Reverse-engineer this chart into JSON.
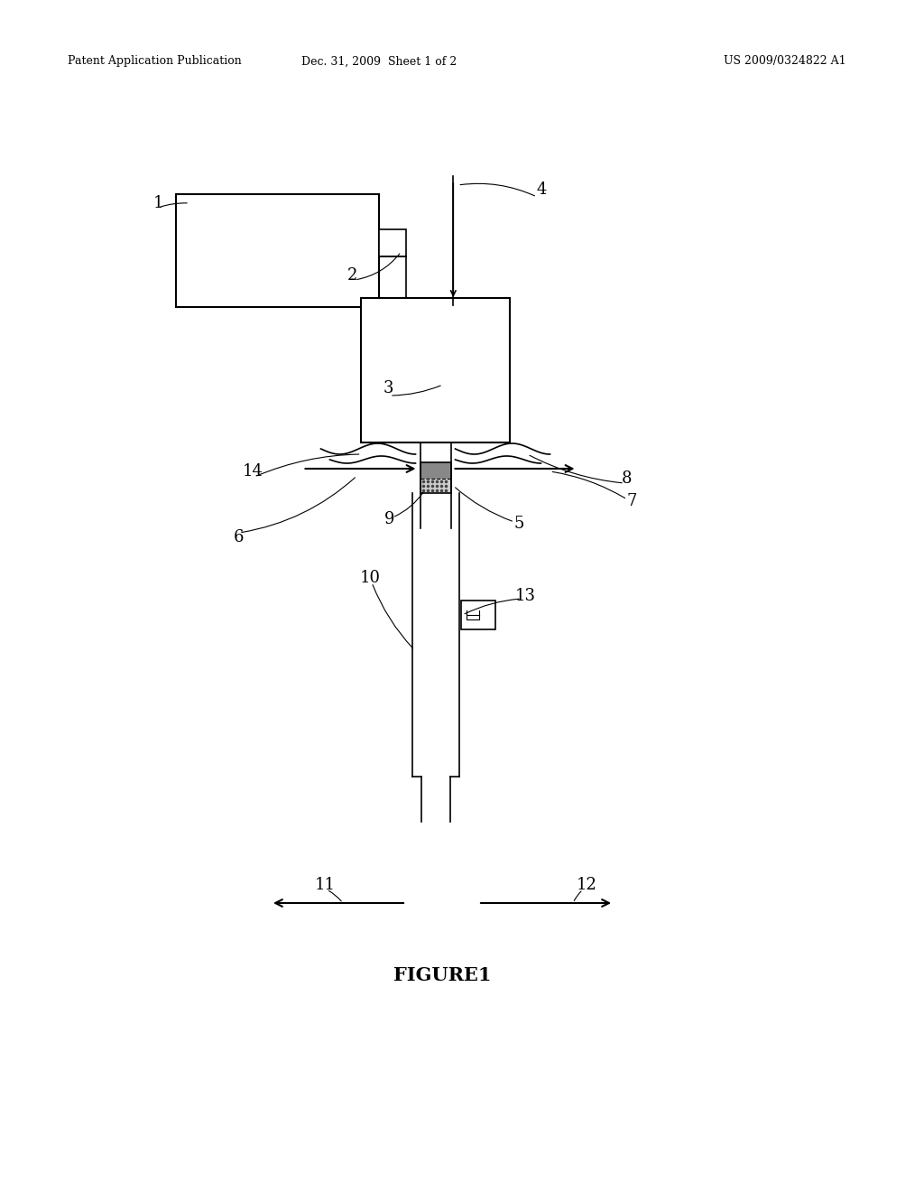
{
  "background_color": "#ffffff",
  "header_left": "Patent Application Publication",
  "header_mid": "Dec. 31, 2009  Sheet 1 of 2",
  "header_right": "US 2009/0324822 A1",
  "figure_label": "FIGURE1"
}
